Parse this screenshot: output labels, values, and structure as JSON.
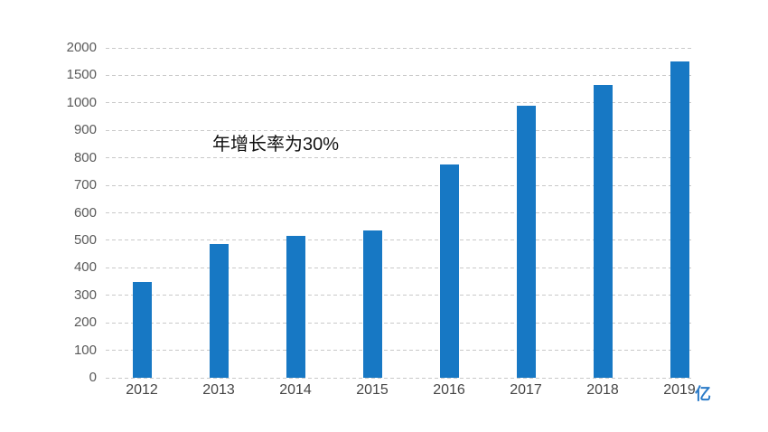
{
  "chart_data": {
    "type": "bar",
    "title": "",
    "xlabel": "",
    "ylabel": "",
    "unit_label": "亿",
    "annotation": "年增长率为30%",
    "categories": [
      "2012",
      "2013",
      "2014",
      "2015",
      "2016",
      "2017",
      "2018",
      "2019"
    ],
    "values": [
      350,
      485,
      515,
      535,
      775,
      990,
      1330,
      1750
    ],
    "y_ticks": [
      0,
      100,
      200,
      300,
      400,
      500,
      600,
      700,
      800,
      900,
      1000,
      1500,
      2000
    ],
    "y_axis_scale": "non-linear: equal pixel spacing per tick; 100-unit steps up to 1000, then 500-unit steps to 2000",
    "grid": "horizontal dashed lines only, no solid axis lines",
    "legend": "none",
    "colors": {
      "bar": "#1778C4",
      "gridline": "#C9C9C9",
      "tick_label": "#595959",
      "x_label": "#454545",
      "annotation": "#111111",
      "unit_label": "#2B7BC8",
      "background": "#FFFFFF"
    }
  }
}
